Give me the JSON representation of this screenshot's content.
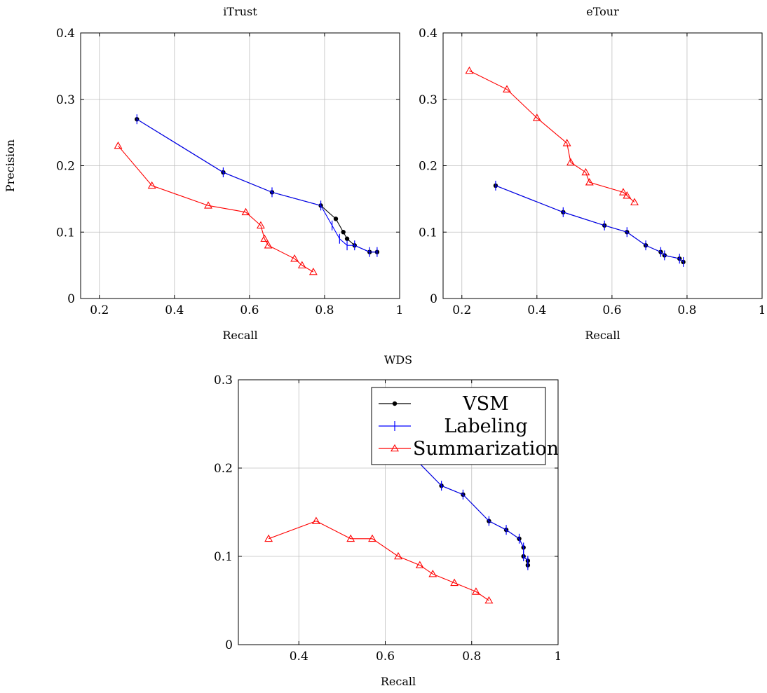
{
  "chart_data": [
    {
      "type": "line",
      "title": "iTrust",
      "xlabel": "Recall",
      "ylabel": "Precision",
      "xlim": [
        0.15,
        1
      ],
      "ylim": [
        0,
        0.4
      ],
      "xticks": [
        "0.2",
        "0.4",
        "0.6",
        "0.8",
        "1"
      ],
      "yticks": [
        "0",
        "0.1",
        "0.2",
        "0.3",
        "0.4"
      ],
      "grid": true,
      "series": [
        {
          "name": "VSM",
          "x": [
            0.3,
            0.53,
            0.66,
            0.79,
            0.83,
            0.85,
            0.86,
            0.88,
            0.92,
            0.94
          ],
          "y": [
            0.27,
            0.19,
            0.16,
            0.14,
            0.12,
            0.1,
            0.09,
            0.08,
            0.07,
            0.07
          ]
        },
        {
          "name": "Labeling",
          "x": [
            0.3,
            0.53,
            0.66,
            0.79,
            0.82,
            0.84,
            0.86,
            0.88,
            0.92,
            0.94
          ],
          "y": [
            0.27,
            0.19,
            0.16,
            0.14,
            0.11,
            0.09,
            0.08,
            0.08,
            0.07,
            0.07
          ]
        },
        {
          "name": "Summarization",
          "x": [
            0.25,
            0.34,
            0.49,
            0.59,
            0.63,
            0.64,
            0.65,
            0.72,
            0.74,
            0.77
          ],
          "y": [
            0.23,
            0.17,
            0.14,
            0.13,
            0.11,
            0.09,
            0.08,
            0.06,
            0.05,
            0.04
          ]
        }
      ]
    },
    {
      "type": "line",
      "title": "eTour",
      "xlabel": "Recall",
      "ylabel": "",
      "xlim": [
        0.15,
        1
      ],
      "ylim": [
        0,
        0.4
      ],
      "xticks": [
        "0.2",
        "0.4",
        "0.6",
        "0.8",
        "1"
      ],
      "yticks": [
        "0",
        "0.1",
        "0.2",
        "0.3",
        "0.4"
      ],
      "grid": true,
      "series": [
        {
          "name": "VSM",
          "x": [
            0.29,
            0.47,
            0.58,
            0.64,
            0.69,
            0.73,
            0.74,
            0.78,
            0.79
          ],
          "y": [
            0.17,
            0.13,
            0.11,
            0.1,
            0.08,
            0.07,
            0.065,
            0.06,
            0.055
          ]
        },
        {
          "name": "Labeling",
          "x": [
            0.29,
            0.47,
            0.58,
            0.64,
            0.69,
            0.73,
            0.74,
            0.78,
            0.79
          ],
          "y": [
            0.17,
            0.13,
            0.11,
            0.1,
            0.08,
            0.07,
            0.065,
            0.06,
            0.055
          ]
        },
        {
          "name": "Summarization",
          "x": [
            0.22,
            0.32,
            0.4,
            0.48,
            0.49,
            0.53,
            0.54,
            0.63,
            0.64,
            0.66
          ],
          "y": [
            0.343,
            0.315,
            0.272,
            0.234,
            0.205,
            0.19,
            0.175,
            0.16,
            0.155,
            0.145
          ]
        }
      ]
    },
    {
      "type": "line",
      "title": "WDS",
      "xlabel": "Recall",
      "ylabel": "",
      "xlim": [
        0.26,
        1
      ],
      "ylim": [
        0,
        0.3
      ],
      "xticks": [
        "0.4",
        "0.6",
        "0.8",
        "1"
      ],
      "yticks": [
        "0",
        "0.1",
        "0.2",
        "0.3"
      ],
      "grid": true,
      "legend": "top-right",
      "series": [
        {
          "name": "VSM",
          "x": [
            0.6,
            0.67,
            0.73,
            0.78,
            0.84,
            0.88,
            0.91,
            0.92,
            0.92,
            0.93,
            0.93
          ],
          "y": [
            0.25,
            0.21,
            0.18,
            0.17,
            0.14,
            0.13,
            0.12,
            0.11,
            0.1,
            0.095,
            0.09
          ]
        },
        {
          "name": "Labeling",
          "x": [
            0.6,
            0.67,
            0.73,
            0.78,
            0.84,
            0.88,
            0.91,
            0.92,
            0.92,
            0.93,
            0.93
          ],
          "y": [
            0.25,
            0.21,
            0.18,
            0.17,
            0.14,
            0.13,
            0.12,
            0.11,
            0.1,
            0.095,
            0.09
          ]
        },
        {
          "name": "Summarization",
          "x": [
            0.33,
            0.44,
            0.52,
            0.57,
            0.63,
            0.68,
            0.71,
            0.76,
            0.81,
            0.84
          ],
          "y": [
            0.12,
            0.14,
            0.12,
            0.12,
            0.1,
            0.09,
            0.08,
            0.07,
            0.06,
            0.05
          ]
        }
      ]
    }
  ],
  "legend": {
    "items": [
      "VSM",
      "Labeling",
      "Summarization"
    ]
  },
  "colors": {
    "VSM": "#000000",
    "Labeling": "#0000ff",
    "Summarization": "#ff0000",
    "grid": "#bfbfbf"
  }
}
